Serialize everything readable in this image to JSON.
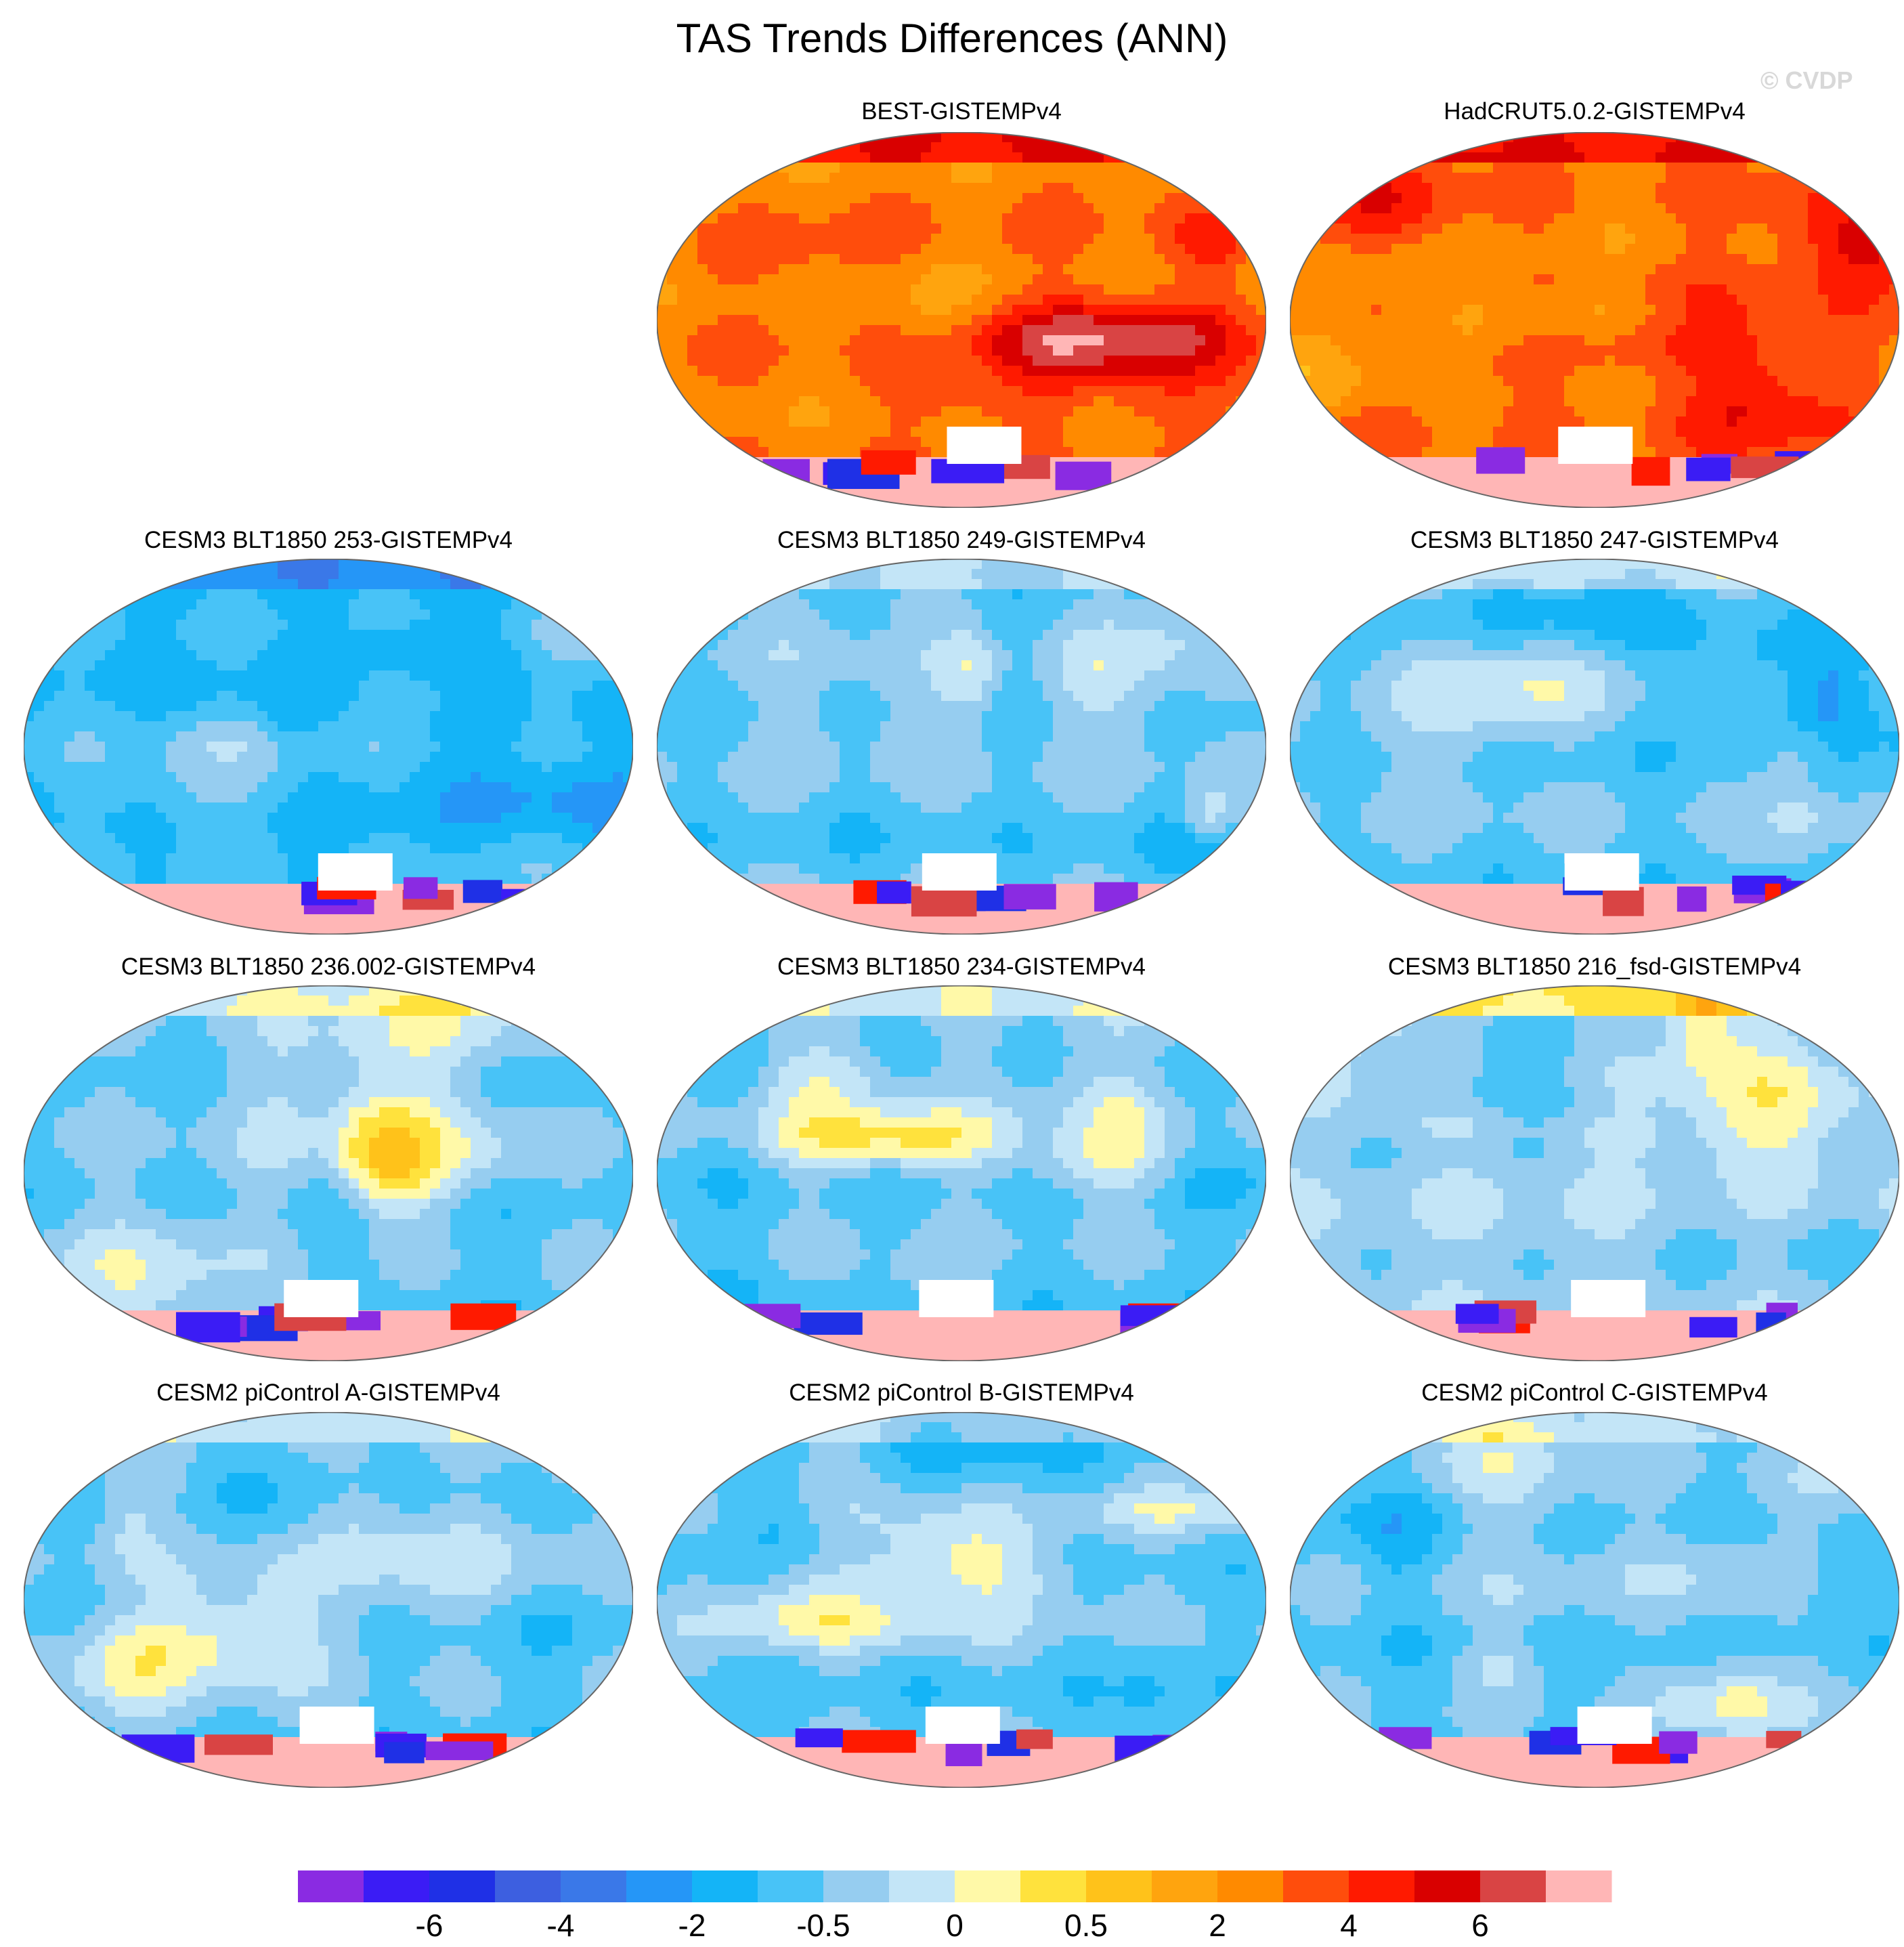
{
  "title": "TAS Trends Differences (ANN)",
  "watermark": "© CVDP",
  "chart_data": {
    "type": "heatmap",
    "title": "TAS Trends Differences (ANN)",
    "colorbar": {
      "colors": [
        "#8a2be2",
        "#3b1cf5",
        "#1f30e6",
        "#3d5fe0",
        "#3a78e8",
        "#2596f7",
        "#14b4f7",
        "#48c3f7",
        "#96cdf0",
        "#c3e5f7",
        "#fff9a8",
        "#ffe23d",
        "#ffc21a",
        "#ffa40e",
        "#ff8a00",
        "#ff4d0c",
        "#ff1a00",
        "#d90000",
        "#d94444",
        "#ffb6b6"
      ],
      "tick_labels": [
        "-6",
        "-4",
        "-2",
        "-0.5",
        "0",
        "0.5",
        "2",
        "4",
        "6"
      ],
      "tick_edges": [
        2,
        4,
        6,
        8,
        10,
        12,
        14,
        16,
        18
      ]
    },
    "panels": [
      {
        "id": "best",
        "title": "BEST-GISTEMPv4",
        "row": 0,
        "col": 1,
        "regime": "warm",
        "seed": 11
      },
      {
        "id": "hadcrut",
        "title": "HadCRUT5.0.2-GISTEMPv4",
        "row": 0,
        "col": 2,
        "regime": "warm",
        "seed": 23
      },
      {
        "id": "c253",
        "title": "CESM3 BLT1850 253-GISTEMPv4",
        "row": 1,
        "col": 0,
        "regime": "cold",
        "seed": 31
      },
      {
        "id": "c249",
        "title": "CESM3 BLT1850 249-GISTEMPv4",
        "row": 1,
        "col": 1,
        "regime": "cool",
        "seed": 47
      },
      {
        "id": "c247",
        "title": "CESM3 BLT1850 247-GISTEMPv4",
        "row": 1,
        "col": 2,
        "regime": "cool",
        "seed": 53
      },
      {
        "id": "c236",
        "title": "CESM3 BLT1850 236.002-GISTEMPv4",
        "row": 2,
        "col": 0,
        "regime": "cool",
        "seed": 61
      },
      {
        "id": "c234",
        "title": "CESM3 BLT1850 234-GISTEMPv4",
        "row": 2,
        "col": 1,
        "regime": "cool",
        "seed": 71
      },
      {
        "id": "c216",
        "title": "CESM3 BLT1850 216_fsd-GISTEMPv4",
        "row": 2,
        "col": 2,
        "regime": "mixed",
        "seed": 83
      },
      {
        "id": "pia",
        "title": "CESM2 piControl A-GISTEMPv4",
        "row": 3,
        "col": 0,
        "regime": "cool",
        "seed": 97
      },
      {
        "id": "pib",
        "title": "CESM2 piControl B-GISTEMPv4",
        "row": 3,
        "col": 1,
        "regime": "cool",
        "seed": 101
      },
      {
        "id": "pic",
        "title": "CESM2 piControl C-GISTEMPv4",
        "row": 3,
        "col": 2,
        "regime": "cool",
        "seed": 113
      }
    ]
  }
}
